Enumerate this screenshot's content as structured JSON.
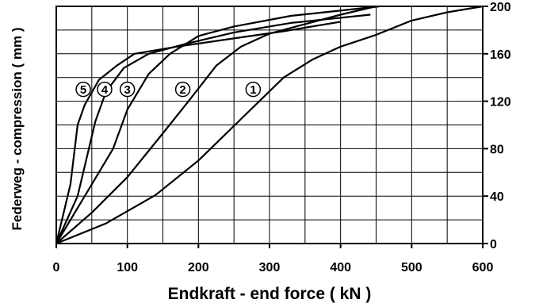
{
  "chart_data": {
    "type": "line",
    "title": "",
    "xlabel": "Endkraft - end force ( kN )",
    "ylabel": "Federweg - compression ( mm )",
    "xlim": [
      0,
      600
    ],
    "ylim": [
      0,
      200
    ],
    "x_ticks": [
      0,
      100,
      200,
      300,
      400,
      500,
      600
    ],
    "y_ticks": [
      0,
      40,
      80,
      120,
      160,
      200
    ],
    "x_tick_labels": [
      "0",
      "100",
      "200",
      "300",
      "400",
      "500",
      "600"
    ],
    "y_tick_labels": [
      "0",
      "40",
      "80",
      "120",
      "160",
      "200"
    ],
    "y_axis_side": "right",
    "grid": true,
    "legend": "none",
    "series": [
      {
        "label": "1",
        "label_at": [
          277,
          130
        ],
        "points": [
          [
            0,
            0
          ],
          [
            70,
            17
          ],
          [
            140,
            41
          ],
          [
            200,
            70
          ],
          [
            260,
            105
          ],
          [
            320,
            140
          ],
          [
            360,
            155
          ],
          [
            400,
            166
          ],
          [
            450,
            176
          ],
          [
            500,
            188
          ],
          [
            550,
            195
          ],
          [
            600,
            200
          ]
        ]
      },
      {
        "label": "2",
        "label_at": [
          178,
          130
        ],
        "points": [
          [
            0,
            0
          ],
          [
            50,
            26
          ],
          [
            100,
            56
          ],
          [
            150,
            93
          ],
          [
            190,
            123
          ],
          [
            225,
            150
          ],
          [
            260,
            166
          ],
          [
            300,
            177
          ],
          [
            350,
            185
          ],
          [
            400,
            193
          ],
          [
            450,
            200
          ]
        ]
      },
      {
        "label": "3",
        "label_at": [
          100,
          130
        ],
        "points": [
          [
            0,
            0
          ],
          [
            40,
            40
          ],
          [
            80,
            80
          ],
          [
            100,
            113
          ],
          [
            130,
            143
          ],
          [
            160,
            160
          ],
          [
            200,
            175
          ],
          [
            250,
            183
          ],
          [
            330,
            192
          ],
          [
            455,
            200
          ]
        ]
      },
      {
        "label": "4",
        "label_at": [
          68,
          130
        ],
        "points": [
          [
            0,
            0
          ],
          [
            30,
            40
          ],
          [
            55,
            103
          ],
          [
            70,
            128
          ],
          [
            95,
            148
          ],
          [
            130,
            160
          ],
          [
            180,
            168
          ],
          [
            250,
            178
          ],
          [
            330,
            186
          ],
          [
            442,
            193
          ]
        ]
      },
      {
        "label": "5",
        "label_at": [
          38,
          130
        ],
        "points": [
          [
            0,
            0
          ],
          [
            20,
            50
          ],
          [
            30,
            100
          ],
          [
            40,
            117
          ],
          [
            60,
            138
          ],
          [
            85,
            150
          ],
          [
            110,
            160
          ],
          [
            170,
            166
          ],
          [
            250,
            173
          ],
          [
            320,
            179
          ],
          [
            400,
            187
          ]
        ]
      }
    ]
  }
}
